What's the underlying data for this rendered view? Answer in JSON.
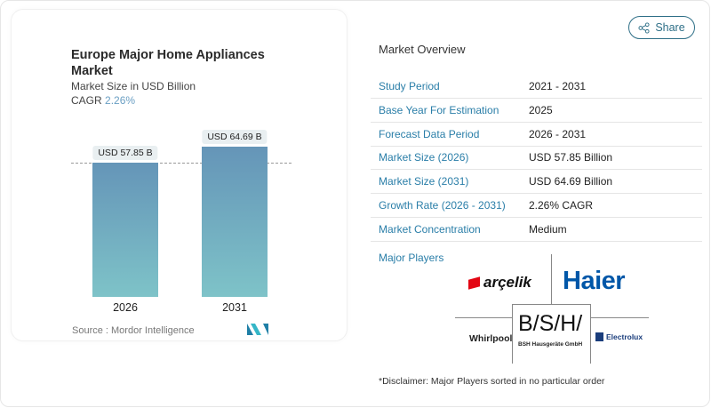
{
  "chart": {
    "title": "Europe Major Home Appliances Market",
    "subtitle": "Market Size in USD Billion",
    "cagr_label": "CAGR",
    "cagr_value": "2.26%",
    "source": "Source :  Mordor Intelligence"
  },
  "chart_data": {
    "type": "bar",
    "categories": [
      "2026",
      "2031"
    ],
    "values": [
      57.85,
      64.69
    ],
    "data_labels": [
      "USD 57.85 B",
      "USD 64.69 B"
    ],
    "title": "Europe Major Home Appliances Market",
    "ylabel": "Market Size in USD Billion",
    "ylim": [
      0,
      70
    ],
    "grid": false,
    "colors": {
      "bar_top": "#6595b8",
      "bar_bottom": "#7ec3c8"
    }
  },
  "share": {
    "label": "Share",
    "icon": "share-icon"
  },
  "overview": {
    "title": "Market Overview",
    "rows": [
      {
        "key": "Study Period",
        "value": "2021 - 2031"
      },
      {
        "key": "Base Year For Estimation",
        "value": "2025"
      },
      {
        "key": "Forecast Data Period",
        "value": "2026 - 2031"
      },
      {
        "key": "Market Size (2026)",
        "value": "USD 57.85 Billion"
      },
      {
        "key": "Market Size (2031)",
        "value": "USD 64.69 Billion"
      },
      {
        "key": "Growth Rate (2026 - 2031)",
        "value": "2.26% CAGR"
      },
      {
        "key": "Market Concentration",
        "value": "Medium"
      }
    ]
  },
  "players": {
    "title": "Major Players",
    "logos": [
      "arçelik",
      "Haier",
      "Whirlpool",
      "B/S/H/",
      "BSH Hausgeräte GmbH",
      "Electrolux"
    ],
    "disclaimer": "*Disclaimer: Major Players sorted in no particular order"
  }
}
